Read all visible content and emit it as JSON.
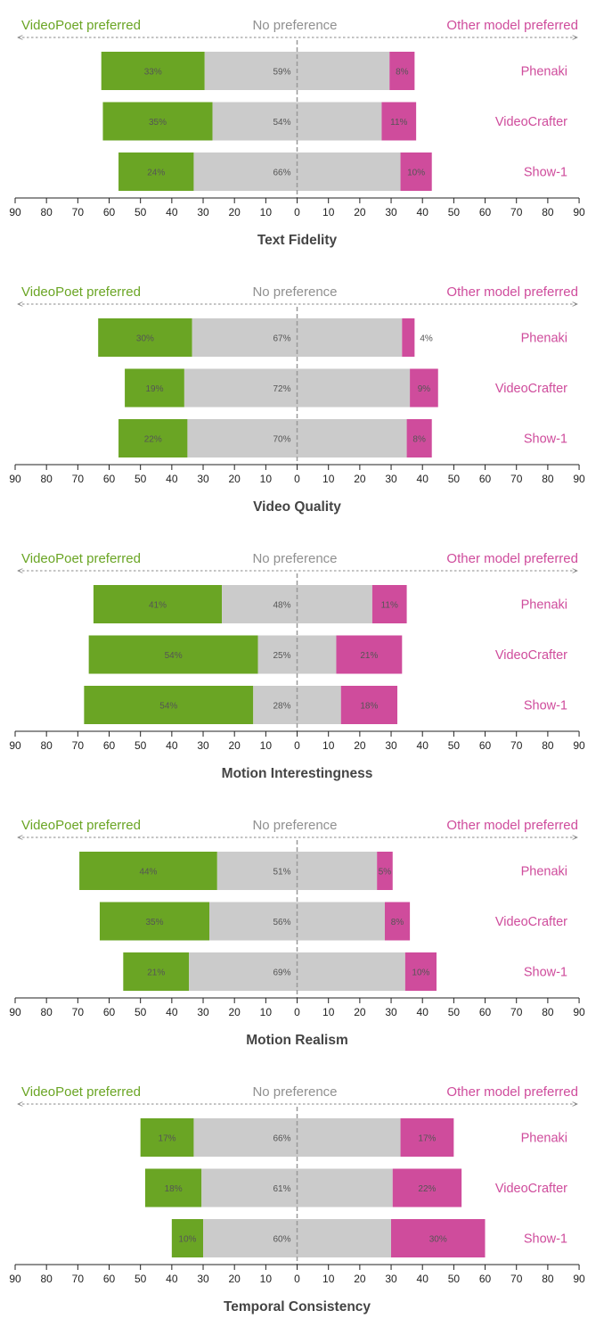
{
  "colors": {
    "videopoet": "#6aa524",
    "neutral": "#cbcbcb",
    "other": "#cf4c9c",
    "header_neutral": "#909090",
    "axis": "#222222",
    "center_line": "#9a9a9a"
  },
  "header": {
    "left": "VideoPoet preferred",
    "center": "No preference",
    "right": "Other model preferred"
  },
  "chart_data": [
    {
      "type": "bar",
      "subtype": "diverging-stacked-horizontal",
      "title": "Text Fidelity",
      "x_ticks": [
        "90",
        "80",
        "70",
        "60",
        "50",
        "40",
        "30",
        "20",
        "10",
        "0",
        "10",
        "20",
        "30",
        "40",
        "50",
        "60",
        "70",
        "80",
        "90"
      ],
      "xlim": [
        -90,
        90
      ],
      "rows": [
        {
          "model": "Phenaki",
          "videopoet": 33,
          "none": 59,
          "other": 8,
          "videopoet_label": "33%",
          "none_label": "59%",
          "other_label": "8%"
        },
        {
          "model": "VideoCrafter",
          "videopoet": 35,
          "none": 54,
          "other": 11,
          "videopoet_label": "35%",
          "none_label": "54%",
          "other_label": "11%"
        },
        {
          "model": "Show-1",
          "videopoet": 24,
          "none": 66,
          "other": 10,
          "videopoet_label": "24%",
          "none_label": "66%",
          "other_label": "10%"
        }
      ]
    },
    {
      "type": "bar",
      "subtype": "diverging-stacked-horizontal",
      "title": "Video Quality",
      "x_ticks": [
        "90",
        "80",
        "70",
        "60",
        "50",
        "40",
        "30",
        "20",
        "10",
        "0",
        "10",
        "20",
        "30",
        "40",
        "50",
        "60",
        "70",
        "80",
        "90"
      ],
      "xlim": [
        -90,
        90
      ],
      "rows": [
        {
          "model": "Phenaki",
          "videopoet": 30,
          "none": 67,
          "other": 4,
          "videopoet_label": "30%",
          "none_label": "67%",
          "other_label": "4%"
        },
        {
          "model": "VideoCrafter",
          "videopoet": 19,
          "none": 72,
          "other": 9,
          "videopoet_label": "19%",
          "none_label": "72%",
          "other_label": "9%"
        },
        {
          "model": "Show-1",
          "videopoet": 22,
          "none": 70,
          "other": 8,
          "videopoet_label": "22%",
          "none_label": "70%",
          "other_label": "8%"
        }
      ]
    },
    {
      "type": "bar",
      "subtype": "diverging-stacked-horizontal",
      "title": "Motion Interestingness",
      "x_ticks": [
        "90",
        "80",
        "70",
        "60",
        "50",
        "40",
        "30",
        "20",
        "10",
        "0",
        "10",
        "20",
        "30",
        "40",
        "50",
        "60",
        "70",
        "80",
        "90"
      ],
      "xlim": [
        -90,
        90
      ],
      "rows": [
        {
          "model": "Phenaki",
          "videopoet": 41,
          "none": 48,
          "other": 11,
          "videopoet_label": "41%",
          "none_label": "48%",
          "other_label": "11%"
        },
        {
          "model": "VideoCrafter",
          "videopoet": 54,
          "none": 25,
          "other": 21,
          "videopoet_label": "54%",
          "none_label": "25%",
          "other_label": "21%"
        },
        {
          "model": "Show-1",
          "videopoet": 54,
          "none": 28,
          "other": 18,
          "videopoet_label": "54%",
          "none_label": "28%",
          "other_label": "18%"
        }
      ]
    },
    {
      "type": "bar",
      "subtype": "diverging-stacked-horizontal",
      "title": "Motion Realism",
      "x_ticks": [
        "90",
        "80",
        "70",
        "60",
        "50",
        "40",
        "30",
        "20",
        "10",
        "0",
        "10",
        "20",
        "30",
        "40",
        "50",
        "60",
        "70",
        "80",
        "90"
      ],
      "xlim": [
        -90,
        90
      ],
      "rows": [
        {
          "model": "Phenaki",
          "videopoet": 44,
          "none": 51,
          "other": 5,
          "videopoet_label": "44%",
          "none_label": "51%",
          "other_label": "5%"
        },
        {
          "model": "VideoCrafter",
          "videopoet": 35,
          "none": 56,
          "other": 8,
          "videopoet_label": "35%",
          "none_label": "56%",
          "other_label": "8%"
        },
        {
          "model": "Show-1",
          "videopoet": 21,
          "none": 69,
          "other": 10,
          "videopoet_label": "21%",
          "none_label": "69%",
          "other_label": "10%"
        }
      ]
    },
    {
      "type": "bar",
      "subtype": "diverging-stacked-horizontal",
      "title": "Temporal Consistency",
      "x_ticks": [
        "90",
        "80",
        "70",
        "60",
        "50",
        "40",
        "30",
        "20",
        "10",
        "0",
        "10",
        "20",
        "30",
        "40",
        "50",
        "60",
        "70",
        "80",
        "90"
      ],
      "xlim": [
        -90,
        90
      ],
      "rows": [
        {
          "model": "Phenaki",
          "videopoet": 17,
          "none": 66,
          "other": 17,
          "videopoet_label": "17%",
          "none_label": "66%",
          "other_label": "17%"
        },
        {
          "model": "VideoCrafter",
          "videopoet": 18,
          "none": 61,
          "other": 22,
          "videopoet_label": "18%",
          "none_label": "61%",
          "other_label": "22%"
        },
        {
          "model": "Show-1",
          "videopoet": 10,
          "none": 60,
          "other": 30,
          "videopoet_label": "10%",
          "none_label": "60%",
          "other_label": "30%"
        }
      ]
    }
  ]
}
